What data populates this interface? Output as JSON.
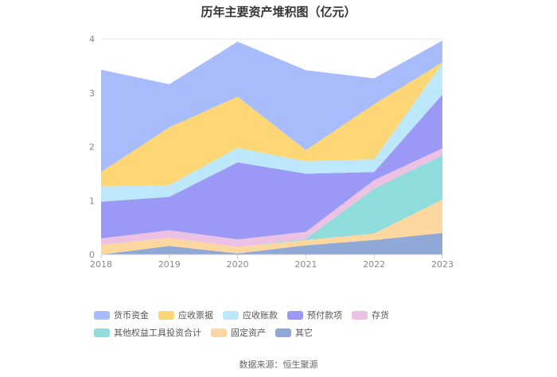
{
  "chart_data": {
    "type": "area",
    "stacked": true,
    "title": "历年主要资产堆积图（亿元）",
    "source": "数据来源：恒生聚源",
    "x": [
      "2018",
      "2019",
      "2020",
      "2021",
      "2022",
      "2023"
    ],
    "ylim": [
      0,
      4
    ],
    "yticks": [
      "0",
      "1",
      "2",
      "3",
      "4"
    ],
    "grid": true,
    "legend_position": "bottom",
    "series": [
      {
        "name": "其它",
        "color": "#8fa8d6",
        "values": [
          0.0,
          0.16,
          0.02,
          0.17,
          0.27,
          0.4
        ]
      },
      {
        "name": "固定资产",
        "color": "#fcd79f",
        "values": [
          0.18,
          0.15,
          0.12,
          0.1,
          0.12,
          0.62
        ]
      },
      {
        "name": "其他权益工具投资合计",
        "color": "#8fdcdc",
        "values": [
          0.0,
          0.0,
          0.0,
          0.02,
          0.83,
          0.82
        ]
      },
      {
        "name": "存货",
        "color": "#ecc1e4",
        "values": [
          0.12,
          0.14,
          0.14,
          0.13,
          0.16,
          0.13
        ]
      },
      {
        "name": "预付款项",
        "color": "#9b99f5",
        "values": [
          0.68,
          0.62,
          1.43,
          1.08,
          0.15,
          1.0
        ]
      },
      {
        "name": "应收账款",
        "color": "#bde8fb",
        "values": [
          0.28,
          0.22,
          0.27,
          0.23,
          0.24,
          0.58
        ]
      },
      {
        "name": "应收票据",
        "color": "#fdd775",
        "values": [
          0.27,
          1.07,
          0.95,
          0.21,
          1.02,
          0.02
        ]
      },
      {
        "name": "货币资金",
        "color": "#a8bcfb",
        "values": [
          1.9,
          0.8,
          1.02,
          1.48,
          0.48,
          0.4
        ]
      }
    ],
    "legend_order": [
      "货币资金",
      "应收票据",
      "应收账款",
      "预付款项",
      "存货",
      "其他权益工具投资合计",
      "固定资产",
      "其它"
    ]
  }
}
